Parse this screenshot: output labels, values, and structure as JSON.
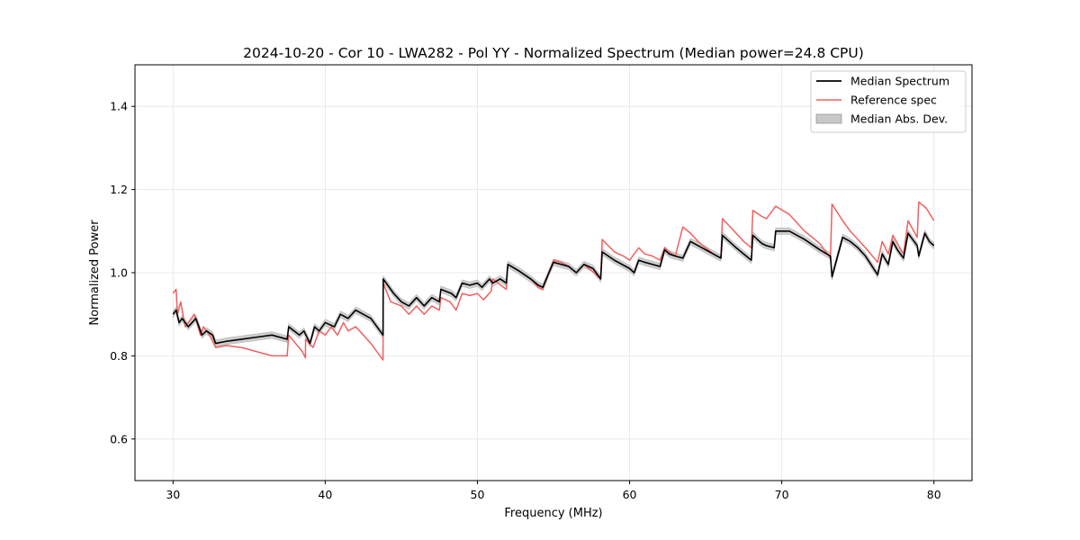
{
  "chart_data": {
    "type": "line",
    "title": "2024-10-20 - Cor 10 - LWA282 - Pol YY - Normalized Spectrum (Median power=24.8 CPU)",
    "xlabel": "Frequency (MHz)",
    "ylabel": "Normalized Power",
    "xlim": [
      27.5,
      82.5
    ],
    "ylim": [
      0.5,
      1.5
    ],
    "xticks": [
      30,
      40,
      50,
      60,
      70,
      80
    ],
    "yticks": [
      0.6,
      0.8,
      1.0,
      1.2,
      1.4
    ],
    "xtick_labels": [
      "30",
      "40",
      "50",
      "60",
      "70",
      "80"
    ],
    "ytick_labels": [
      "0.6",
      "0.8",
      "1.0",
      "1.2",
      "1.4"
    ],
    "grid": true,
    "legend_position": "top-right",
    "legend": [
      {
        "label": "Median Spectrum",
        "kind": "line",
        "color": "#000000"
      },
      {
        "label": "Reference spec",
        "kind": "line",
        "color": "#f06060"
      },
      {
        "label": "Median Abs. Dev.",
        "kind": "band",
        "color": "#c8c8c8"
      }
    ],
    "series": [
      {
        "name": "Median Spectrum",
        "color": "#000000",
        "mad": 0.008,
        "x": [
          30.0,
          30.2,
          30.4,
          30.6,
          31.0,
          31.5,
          31.9,
          32.2,
          32.6,
          32.8,
          33.5,
          34.5,
          35.5,
          36.5,
          37.5,
          37.6,
          38.3,
          38.6,
          39.0,
          39.3,
          39.6,
          40.0,
          40.6,
          41.0,
          41.5,
          42.0,
          42.5,
          43.0,
          43.8,
          43.81,
          44.5,
          45.0,
          45.5,
          46.0,
          46.5,
          47.0,
          47.5,
          47.6,
          48.3,
          48.6,
          49.0,
          49.5,
          50.0,
          50.3,
          50.8,
          51.0,
          51.5,
          51.9,
          52.0,
          52.7,
          53.5,
          54.0,
          54.3,
          54.7,
          55.0,
          55.5,
          56.0,
          56.5,
          57.0,
          57.6,
          58.1,
          58.2,
          59.0,
          59.5,
          60.0,
          60.3,
          60.6,
          61.0,
          61.5,
          62.0,
          62.3,
          62.6,
          63.0,
          63.5,
          64.0,
          64.5,
          65.0,
          65.5,
          66.0,
          66.1,
          67.0,
          67.5,
          68.0,
          68.1,
          68.7,
          69.0,
          69.5,
          69.6,
          70.5,
          71.5,
          72.5,
          73.2,
          73.3,
          74.0,
          74.5,
          75.0,
          75.5,
          76.3,
          76.6,
          77.0,
          77.3,
          77.6,
          78.0,
          78.3,
          78.6,
          78.9,
          79.0,
          79.4,
          79.7,
          80.0
        ],
        "y": [
          0.9,
          0.91,
          0.88,
          0.89,
          0.87,
          0.89,
          0.85,
          0.86,
          0.85,
          0.83,
          0.835,
          0.84,
          0.845,
          0.85,
          0.84,
          0.87,
          0.85,
          0.86,
          0.83,
          0.87,
          0.86,
          0.88,
          0.87,
          0.9,
          0.89,
          0.91,
          0.9,
          0.89,
          0.85,
          0.985,
          0.95,
          0.93,
          0.92,
          0.94,
          0.92,
          0.94,
          0.93,
          0.96,
          0.95,
          0.94,
          0.975,
          0.97,
          0.975,
          0.965,
          0.985,
          0.975,
          0.985,
          0.975,
          1.02,
          1.005,
          0.985,
          0.97,
          0.965,
          1.0,
          1.025,
          1.02,
          1.015,
          1.0,
          1.02,
          1.01,
          0.985,
          1.05,
          1.03,
          1.02,
          1.01,
          1.0,
          1.03,
          1.025,
          1.02,
          1.015,
          1.055,
          1.045,
          1.04,
          1.035,
          1.075,
          1.065,
          1.055,
          1.045,
          1.035,
          1.09,
          1.06,
          1.045,
          1.03,
          1.09,
          1.07,
          1.065,
          1.06,
          1.1,
          1.1,
          1.08,
          1.055,
          1.04,
          0.99,
          1.085,
          1.075,
          1.06,
          1.04,
          0.995,
          1.045,
          1.02,
          1.075,
          1.055,
          1.035,
          1.095,
          1.08,
          1.065,
          1.04,
          1.095,
          1.075,
          1.065
        ]
      },
      {
        "name": "Reference spec",
        "color": "#f06060",
        "x": [
          30.0,
          30.2,
          30.3,
          30.5,
          30.8,
          31.0,
          31.4,
          31.8,
          32.0,
          32.4,
          32.8,
          33.5,
          34.5,
          35.5,
          36.5,
          37.5,
          37.6,
          38.5,
          38.7,
          38.71,
          39.2,
          39.6,
          40.0,
          40.4,
          40.8,
          41.2,
          41.5,
          42.0,
          42.5,
          43.0,
          43.8,
          43.81,
          44.3,
          45.0,
          45.5,
          46.0,
          46.5,
          47.0,
          47.5,
          47.6,
          48.2,
          48.6,
          49.0,
          49.5,
          50.0,
          50.4,
          50.9,
          51.0,
          51.9,
          52.0,
          52.7,
          53.5,
          54.0,
          54.3,
          55.0,
          55.5,
          56.0,
          56.5,
          57.0,
          57.5,
          58.1,
          58.2,
          59.0,
          59.6,
          60.0,
          60.6,
          61.0,
          61.5,
          62.0,
          62.3,
          62.6,
          63.0,
          63.5,
          64.0,
          64.5,
          65.0,
          65.5,
          66.0,
          66.1,
          67.0,
          67.5,
          68.0,
          68.1,
          68.7,
          69.0,
          69.6,
          70.5,
          71.5,
          72.5,
          73.2,
          73.3,
          74.0,
          74.5,
          75.0,
          75.5,
          76.3,
          76.6,
          77.0,
          77.3,
          77.6,
          78.0,
          78.3,
          78.6,
          78.9,
          79.0,
          79.5,
          80.0
        ],
        "y": [
          0.95,
          0.96,
          0.9,
          0.93,
          0.87,
          0.88,
          0.9,
          0.85,
          0.87,
          0.85,
          0.82,
          0.825,
          0.82,
          0.81,
          0.8,
          0.8,
          0.85,
          0.81,
          0.795,
          0.84,
          0.82,
          0.86,
          0.85,
          0.87,
          0.85,
          0.88,
          0.86,
          0.87,
          0.85,
          0.83,
          0.79,
          0.975,
          0.93,
          0.92,
          0.9,
          0.92,
          0.9,
          0.92,
          0.91,
          0.94,
          0.93,
          0.91,
          0.95,
          0.945,
          0.95,
          0.935,
          0.955,
          0.985,
          0.96,
          1.02,
          1.005,
          0.985,
          0.965,
          0.96,
          1.03,
          1.025,
          1.015,
          1.0,
          1.02,
          1.005,
          0.985,
          1.08,
          1.05,
          1.04,
          1.03,
          1.06,
          1.045,
          1.04,
          1.03,
          1.06,
          1.05,
          1.04,
          1.11,
          1.095,
          1.075,
          1.06,
          1.045,
          1.035,
          1.13,
          1.095,
          1.075,
          1.06,
          1.15,
          1.135,
          1.13,
          1.16,
          1.14,
          1.1,
          1.07,
          1.035,
          1.165,
          1.125,
          1.1,
          1.08,
          1.06,
          1.025,
          1.075,
          1.045,
          1.09,
          1.07,
          1.045,
          1.125,
          1.105,
          1.085,
          1.17,
          1.155,
          1.125
        ]
      }
    ]
  }
}
